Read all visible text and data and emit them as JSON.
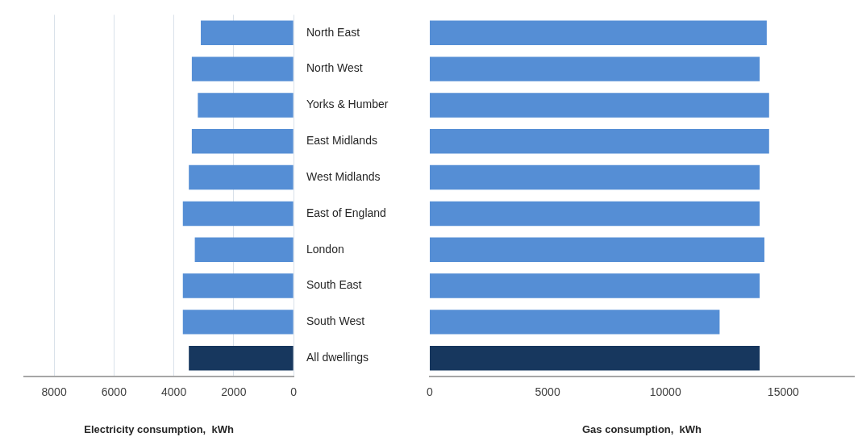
{
  "chart_data": [
    {
      "type": "bar",
      "orientation": "horizontal",
      "categories": [
        null,
        null,
        null,
        null,
        null,
        null,
        null,
        null,
        null,
        null
      ],
      "values": [
        3100,
        3400,
        3200,
        3400,
        3500,
        3700,
        3300,
        3700,
        3700,
        3500
      ],
      "colors": [
        "#558ed5",
        "#558ed5",
        "#558ed5",
        "#558ed5",
        "#558ed5",
        "#558ed5",
        "#558ed5",
        "#558ed5",
        "#558ed5",
        "#17375e"
      ],
      "xlim": [
        9000,
        0
      ],
      "xticks": [
        8000,
        6000,
        4000,
        2000,
        0
      ],
      "xlabel": "Electricity consumption,  kWh",
      "grid": "x"
    },
    {
      "type": "bar",
      "orientation": "horizontal",
      "categories": [
        "North East",
        "North West",
        "Yorks & Humber",
        "East Midlands",
        "West Midlands",
        "East of England",
        "London",
        "South East",
        "South West",
        "All dwellings"
      ],
      "values": [
        14300,
        14000,
        14400,
        14400,
        14000,
        14000,
        14200,
        14000,
        12300,
        14000
      ],
      "colors": [
        "#558ed5",
        "#558ed5",
        "#558ed5",
        "#558ed5",
        "#558ed5",
        "#558ed5",
        "#558ed5",
        "#558ed5",
        "#558ed5",
        "#17375e"
      ],
      "xlim": [
        0,
        18000
      ],
      "xticks": [
        0,
        5000,
        10000,
        15000
      ],
      "xlabel": "Gas consumption,  kWh"
    }
  ]
}
